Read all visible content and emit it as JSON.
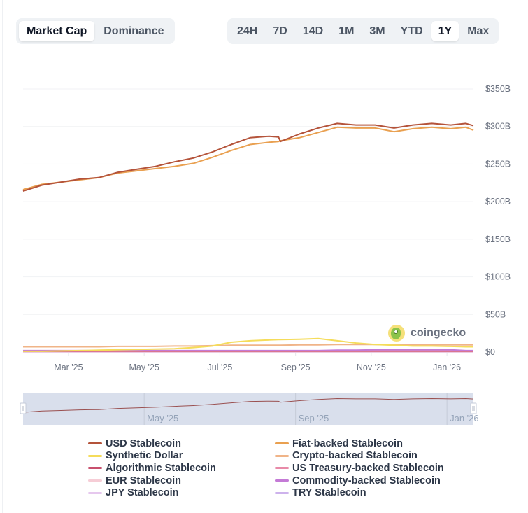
{
  "metric_tabs": [
    {
      "label": "Market Cap",
      "active": true
    },
    {
      "label": "Dominance",
      "active": false
    }
  ],
  "range_tabs": [
    {
      "label": "24H",
      "active": false
    },
    {
      "label": "7D",
      "active": false
    },
    {
      "label": "14D",
      "active": false
    },
    {
      "label": "1M",
      "active": false
    },
    {
      "label": "3M",
      "active": false
    },
    {
      "label": "YTD",
      "active": false
    },
    {
      "label": "1Y",
      "active": true
    },
    {
      "label": "Max",
      "active": false
    }
  ],
  "watermark": {
    "text": "coingecko",
    "icon": "coingecko-logo-icon"
  },
  "colors": {
    "usd": "#b4533a",
    "fiat": "#e9a050",
    "synthetic": "#f5dc5a",
    "crypto": "#f0b488",
    "algorithmic": "#c8506e",
    "treasury": "#e88aa8",
    "eur": "#f6cdd6",
    "commodity": "#c47ad6",
    "jpy": "#e6c8ee",
    "try": "#cdb2ec",
    "navigator_bg": "#d9dfec",
    "navigator_line": "#9a5050"
  },
  "chart_data": {
    "type": "line",
    "title": "",
    "xlabel": "",
    "ylabel": "",
    "ylim": [
      0,
      350
    ],
    "y_unit": "B USD",
    "y_ticks": [
      "$0",
      "$50B",
      "$100B",
      "$150B",
      "$200B",
      "$250B",
      "$300B",
      "$350B"
    ],
    "y_tick_values": [
      0,
      50,
      100,
      150,
      200,
      250,
      300,
      350
    ],
    "x_ticks": [
      "Mar '25",
      "May '25",
      "Jul '25",
      "Sep '25",
      "Nov '25",
      "Jan '26"
    ],
    "x_tick_positions_months": [
      1,
      3,
      5,
      7,
      9,
      11
    ],
    "x_range_months": [
      -0.2,
      11.7
    ],
    "grid": true,
    "legend_position": "bottom",
    "x": [
      -0.2,
      0.3,
      0.8,
      1.3,
      1.8,
      2.3,
      2.8,
      3.3,
      3.8,
      4.3,
      4.8,
      5.3,
      5.8,
      6.3,
      6.55,
      6.6,
      7.1,
      7.6,
      8.1,
      8.6,
      9.1,
      9.6,
      10.1,
      10.6,
      11.1,
      11.5,
      11.7
    ],
    "series": [
      {
        "name": "USD Stablecoin",
        "color_key": "usd",
        "values": [
          214,
          222,
          226,
          230,
          232,
          239,
          243,
          247,
          253,
          258,
          266,
          276,
          285,
          287,
          286,
          280,
          290,
          298,
          304,
          302,
          302,
          298,
          302,
          304,
          302,
          304,
          301
        ]
      },
      {
        "name": "Fiat-backed Stablecoin",
        "color_key": "fiat",
        "values": [
          216,
          223,
          226,
          229,
          232,
          238,
          241,
          244,
          247,
          251,
          259,
          268,
          276,
          279,
          280,
          281,
          285,
          292,
          299,
          298,
          298,
          293,
          297,
          299,
          297,
          299,
          295
        ]
      },
      {
        "name": "Synthetic Dollar",
        "color_key": "synthetic",
        "values": [
          1,
          1,
          1.5,
          2,
          2.5,
          3,
          3.5,
          4,
          4.5,
          6,
          8,
          13,
          15,
          16,
          16.5,
          16.5,
          17,
          18,
          15,
          12,
          10,
          9,
          8,
          8,
          7.5,
          7,
          7
        ]
      },
      {
        "name": "Crypto-backed Stablecoin",
        "color_key": "crypto",
        "values": [
          7,
          7,
          7,
          7,
          7,
          7.5,
          7.5,
          7.5,
          8,
          8,
          8.5,
          9,
          9,
          9,
          9,
          9,
          9.5,
          9.5,
          10,
          10,
          10,
          9.5,
          9.5,
          9.5,
          9.5,
          9.5,
          9.5
        ]
      },
      {
        "name": "Algorithmic Stablecoin",
        "color_key": "algorithmic",
        "values": [
          1,
          1,
          1,
          1,
          1,
          1,
          1,
          1,
          1,
          1,
          1,
          1,
          1,
          1,
          1,
          1,
          1,
          1,
          1,
          1,
          1,
          1,
          1,
          1,
          1,
          1,
          1
        ]
      },
      {
        "name": "US Treasury-backed Stablecoin",
        "color_key": "treasury",
        "values": [
          1.5,
          1.5,
          1.5,
          1.5,
          1.5,
          1.5,
          1.5,
          1.5,
          1.5,
          1.5,
          1.5,
          1.5,
          1.5,
          1.5,
          1.5,
          1.5,
          1.5,
          1.5,
          1.5,
          1.5,
          1.5,
          1.5,
          1.5,
          1.5,
          1.5,
          1.5,
          1.5
        ]
      },
      {
        "name": "EUR Stablecoin",
        "color_key": "eur",
        "values": [
          0.5,
          0.5,
          0.5,
          0.5,
          0.5,
          0.5,
          0.5,
          0.5,
          0.5,
          0.5,
          0.5,
          0.5,
          0.5,
          0.5,
          0.5,
          0.5,
          0.5,
          0.5,
          0.5,
          0.5,
          0.5,
          0.5,
          0.5,
          0.5,
          0.5,
          0.5,
          0.5
        ]
      },
      {
        "name": "Commodity-backed Stablecoin",
        "color_key": "commodity",
        "values": [
          2,
          2,
          2,
          2,
          2,
          2,
          2,
          2,
          2,
          2,
          2,
          2,
          2,
          2,
          2,
          2,
          2,
          2,
          2.5,
          2.5,
          3,
          3,
          3,
          3,
          3,
          2,
          2
        ]
      },
      {
        "name": "JPY Stablecoin",
        "color_key": "jpy",
        "values": [
          0.1,
          0.1,
          0.1,
          0.1,
          0.1,
          0.1,
          0.1,
          0.1,
          0.1,
          0.1,
          0.1,
          0.1,
          0.1,
          0.1,
          0.1,
          0.1,
          0.1,
          0.1,
          0.1,
          0.1,
          0.1,
          0.1,
          0.1,
          0.1,
          0.1,
          0.1,
          0.1
        ]
      },
      {
        "name": "TRY Stablecoin",
        "color_key": "try",
        "values": [
          0.1,
          0.1,
          0.1,
          0.1,
          0.1,
          0.1,
          0.1,
          0.1,
          0.1,
          0.1,
          0.1,
          0.1,
          0.1,
          0.1,
          0.1,
          0.1,
          0.1,
          0.1,
          0.1,
          0.1,
          0.1,
          0.1,
          0.1,
          0.1,
          0.1,
          0.1,
          0.1
        ]
      }
    ],
    "navigator": {
      "x_ticks": [
        "May '25",
        "Sep '25",
        "Jan '26"
      ],
      "x_tick_positions_months": [
        3,
        7,
        11
      ]
    }
  },
  "legend": {
    "left": [
      {
        "label": "USD Stablecoin",
        "color_key": "usd"
      },
      {
        "label": "Synthetic Dollar",
        "color_key": "synthetic"
      },
      {
        "label": "Algorithmic Stablecoin",
        "color_key": "algorithmic"
      },
      {
        "label": "EUR Stablecoin",
        "color_key": "eur"
      },
      {
        "label": "JPY Stablecoin",
        "color_key": "jpy"
      }
    ],
    "right": [
      {
        "label": "Fiat-backed Stablecoin",
        "color_key": "fiat"
      },
      {
        "label": "Crypto-backed Stablecoin",
        "color_key": "crypto"
      },
      {
        "label": "US Treasury-backed Stablecoin",
        "color_key": "treasury"
      },
      {
        "label": "Commodity-backed Stablecoin",
        "color_key": "commodity"
      },
      {
        "label": "TRY Stablecoin",
        "color_key": "try"
      }
    ]
  }
}
